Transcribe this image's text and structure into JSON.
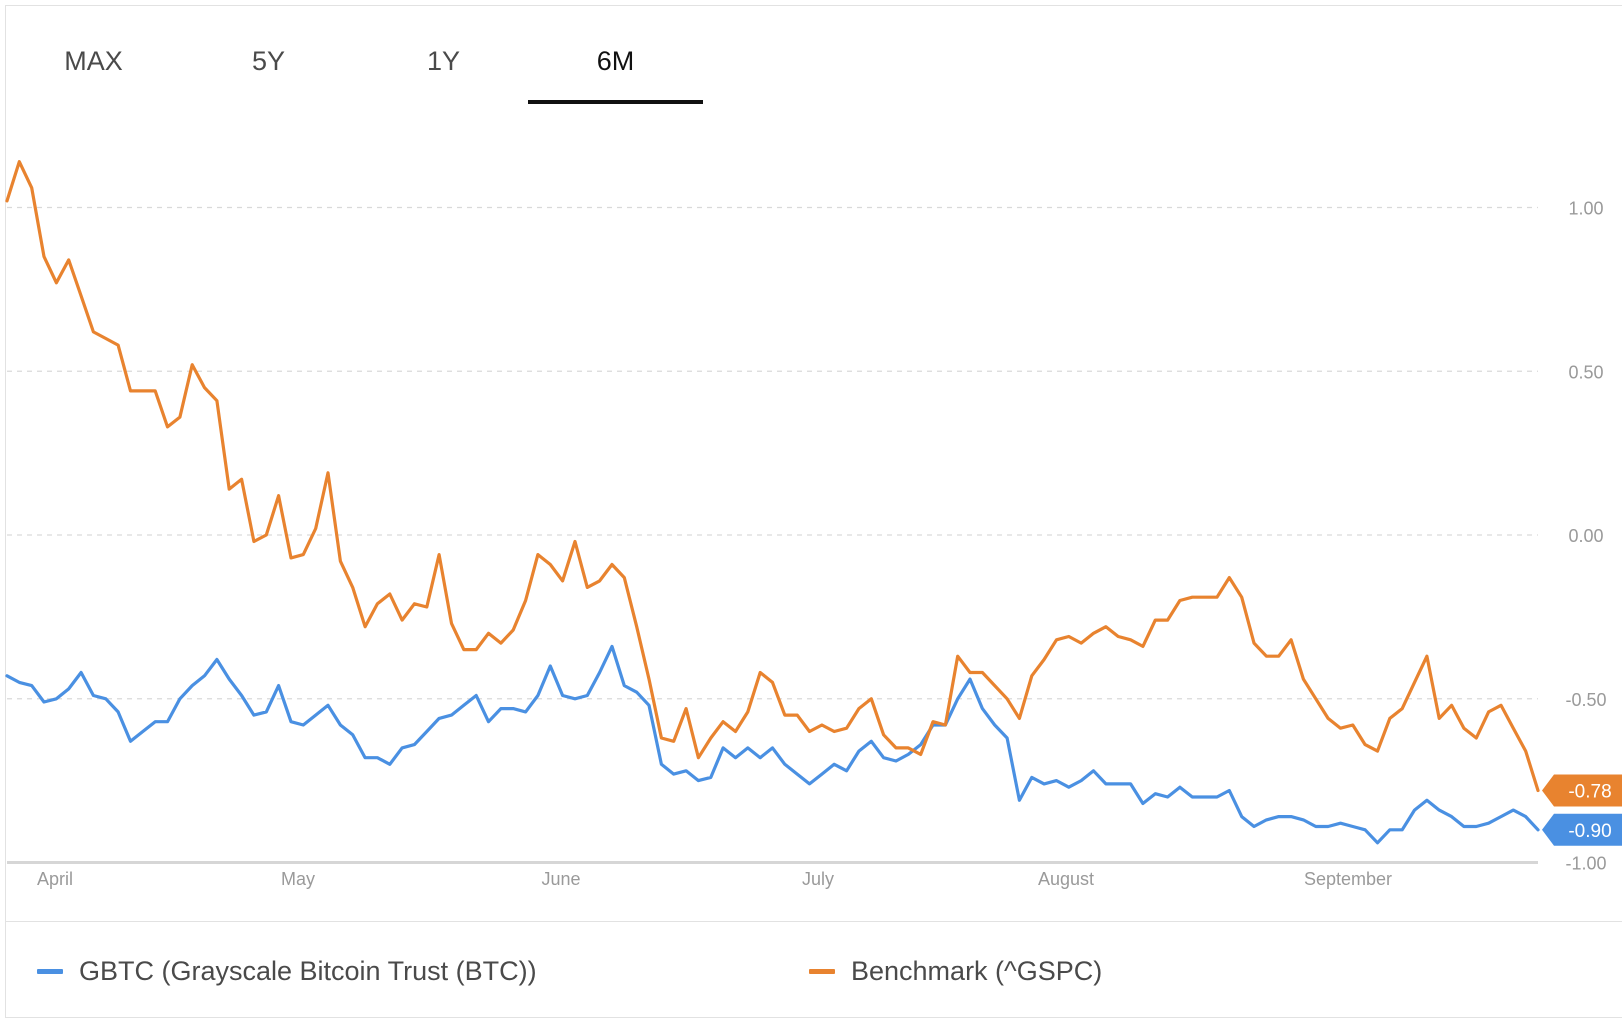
{
  "tabs": [
    {
      "label": "MAX",
      "active": false
    },
    {
      "label": "5Y",
      "active": false
    },
    {
      "label": "1Y",
      "active": false
    },
    {
      "label": "6M",
      "active": true
    }
  ],
  "colors": {
    "gbtc": "#4a90e2",
    "benchmark": "#e8832f",
    "grid": "#d9d9d9",
    "axis_text": "#9a9a9a"
  },
  "legend": [
    {
      "label": "GBTC (Grayscale Bitcoin Trust (BTC))",
      "color": "#4a90e2"
    },
    {
      "label": "Benchmark (^GSPC)",
      "color": "#e8832f"
    }
  ],
  "chart_data": {
    "type": "line",
    "x_labels": [
      "April",
      "May",
      "June",
      "July",
      "August",
      "September"
    ],
    "y_ticks": [
      "1.00",
      "0.50",
      "0.00",
      "-0.50",
      "-1.00"
    ],
    "y_tick_values": [
      1.0,
      0.5,
      0.0,
      -0.5,
      -1.0
    ],
    "ylim": [
      -1.0,
      1.15
    ],
    "grid": true,
    "series": [
      {
        "name": "GBTC (Grayscale Bitcoin Trust (BTC))",
        "end_label": "-0.90",
        "values": [
          -0.43,
          -0.45,
          -0.46,
          -0.51,
          -0.5,
          -0.47,
          -0.42,
          -0.49,
          -0.5,
          -0.54,
          -0.63,
          -0.6,
          -0.57,
          -0.57,
          -0.5,
          -0.46,
          -0.43,
          -0.38,
          -0.44,
          -0.49,
          -0.55,
          -0.54,
          -0.46,
          -0.57,
          -0.58,
          -0.55,
          -0.52,
          -0.58,
          -0.61,
          -0.68,
          -0.68,
          -0.7,
          -0.65,
          -0.64,
          -0.6,
          -0.56,
          -0.55,
          -0.52,
          -0.49,
          -0.57,
          -0.53,
          -0.53,
          -0.54,
          -0.49,
          -0.4,
          -0.49,
          -0.5,
          -0.49,
          -0.42,
          -0.34,
          -0.46,
          -0.48,
          -0.52,
          -0.7,
          -0.73,
          -0.72,
          -0.75,
          -0.74,
          -0.65,
          -0.68,
          -0.65,
          -0.68,
          -0.65,
          -0.7,
          -0.73,
          -0.76,
          -0.73,
          -0.7,
          -0.72,
          -0.66,
          -0.63,
          -0.68,
          -0.69,
          -0.67,
          -0.64,
          -0.58,
          -0.58,
          -0.5,
          -0.44,
          -0.53,
          -0.58,
          -0.62,
          -0.81,
          -0.74,
          -0.76,
          -0.75,
          -0.77,
          -0.75,
          -0.72,
          -0.76,
          -0.76,
          -0.76,
          -0.82,
          -0.79,
          -0.8,
          -0.77,
          -0.8,
          -0.8,
          -0.8,
          -0.78,
          -0.86,
          -0.89,
          -0.87,
          -0.86,
          -0.86,
          -0.87,
          -0.89,
          -0.89,
          -0.88,
          -0.89,
          -0.9,
          -0.94,
          -0.9,
          -0.9,
          -0.84,
          -0.81,
          -0.84,
          -0.86,
          -0.89,
          -0.89,
          -0.88,
          -0.86,
          -0.84,
          -0.86,
          -0.9
        ]
      },
      {
        "name": "Benchmark (^GSPC)",
        "end_label": "-0.78",
        "values": [
          1.02,
          1.14,
          1.06,
          0.85,
          0.77,
          0.84,
          0.73,
          0.62,
          0.6,
          0.58,
          0.44,
          0.44,
          0.44,
          0.33,
          0.36,
          0.52,
          0.45,
          0.41,
          0.14,
          0.17,
          -0.02,
          0.0,
          0.12,
          -0.07,
          -0.06,
          0.02,
          0.19,
          -0.08,
          -0.16,
          -0.28,
          -0.21,
          -0.18,
          -0.26,
          -0.21,
          -0.22,
          -0.06,
          -0.27,
          -0.35,
          -0.35,
          -0.3,
          -0.33,
          -0.29,
          -0.2,
          -0.06,
          -0.09,
          -0.14,
          -0.02,
          -0.16,
          -0.14,
          -0.09,
          -0.13,
          -0.28,
          -0.44,
          -0.62,
          -0.63,
          -0.53,
          -0.68,
          -0.62,
          -0.57,
          -0.6,
          -0.54,
          -0.42,
          -0.45,
          -0.55,
          -0.55,
          -0.6,
          -0.58,
          -0.6,
          -0.59,
          -0.53,
          -0.5,
          -0.61,
          -0.65,
          -0.65,
          -0.67,
          -0.57,
          -0.58,
          -0.37,
          -0.42,
          -0.42,
          -0.46,
          -0.5,
          -0.56,
          -0.43,
          -0.38,
          -0.32,
          -0.31,
          -0.33,
          -0.3,
          -0.28,
          -0.31,
          -0.32,
          -0.34,
          -0.26,
          -0.26,
          -0.2,
          -0.19,
          -0.19,
          -0.19,
          -0.13,
          -0.19,
          -0.33,
          -0.37,
          -0.37,
          -0.32,
          -0.44,
          -0.5,
          -0.56,
          -0.59,
          -0.58,
          -0.64,
          -0.66,
          -0.56,
          -0.53,
          -0.45,
          -0.37,
          -0.56,
          -0.52,
          -0.59,
          -0.62,
          -0.54,
          -0.52,
          -0.59,
          -0.66,
          -0.78
        ]
      }
    ]
  }
}
